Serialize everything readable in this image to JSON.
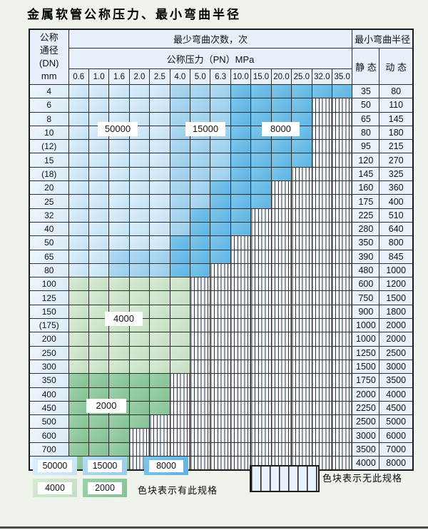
{
  "page": {
    "title": "金属软管公称压力、最小弯曲半径"
  },
  "table": {
    "header": {
      "dn_label_lines": [
        "公称",
        "通径",
        "(DN)",
        "mm"
      ],
      "cycles_label": "最少弯曲次数，次",
      "pressure_label": "公称压力（PN）MPa",
      "radius_label": "最小弯曲半径",
      "static_label": "静 态",
      "dynamic_label": "动 态",
      "pressure_columns": [
        "0.6",
        "1.0",
        "1.6",
        "2.0",
        "2.5",
        "4.0",
        "5.0",
        "6.3",
        "10.0",
        "15.0",
        "20.0",
        "25.0",
        "32.0",
        "35.0"
      ]
    },
    "cell_code_meaning": {
      "A": "50000",
      "B": "15000",
      "C": "8000",
      "D": "4000",
      "E": "2000",
      "X": "无此规格"
    },
    "rows": [
      {
        "dn": "4",
        "cells": "AAAAABBBCCCCCC",
        "static": "35",
        "dynamic": "80"
      },
      {
        "dn": "6",
        "cells": "AAAAABBBCCCCXX",
        "static": "50",
        "dynamic": "110"
      },
      {
        "dn": "8",
        "cells": "AAAAABBBCCCCXX",
        "static": "65",
        "dynamic": "145"
      },
      {
        "dn": "10",
        "cells": "AAAAABBBCCCCXX",
        "static": "80",
        "dynamic": "180"
      },
      {
        "dn": "(12)",
        "cells": "AAAAABBBCCCCXX",
        "static": "95",
        "dynamic": "215"
      },
      {
        "dn": "15",
        "cells": "AAAAABBBCCCCXX",
        "static": "120",
        "dynamic": "270"
      },
      {
        "dn": "(18)",
        "cells": "AAAAABBBCCCXXX",
        "static": "145",
        "dynamic": "325"
      },
      {
        "dn": "20",
        "cells": "AAAAABBCCCXXXX",
        "static": "160",
        "dynamic": "360"
      },
      {
        "dn": "25",
        "cells": "AAAAABBCCCXXXX",
        "static": "175",
        "dynamic": "400"
      },
      {
        "dn": "32",
        "cells": "AAAAABCCCXXXXX",
        "static": "225",
        "dynamic": "510"
      },
      {
        "dn": "40",
        "cells": "AAAAABCCCXXXXX",
        "static": "280",
        "dynamic": "640"
      },
      {
        "dn": "50",
        "cells": "AAAAACCCXXXXXX",
        "static": "350",
        "dynamic": "800"
      },
      {
        "dn": "65",
        "cells": "AABBBCCCXXXXXX",
        "static": "390",
        "dynamic": "845"
      },
      {
        "dn": "80",
        "cells": "AABBBCCXXXXXXX",
        "static": "480",
        "dynamic": "1000"
      },
      {
        "dn": "100",
        "cells": "DDDDDDXXXXXXXX",
        "static": "600",
        "dynamic": "1200"
      },
      {
        "dn": "125",
        "cells": "DDDDDDXXXXXXXX",
        "static": "750",
        "dynamic": "1500"
      },
      {
        "dn": "150",
        "cells": "DDDDDDXXXXXXXX",
        "static": "900",
        "dynamic": "1800"
      },
      {
        "dn": "(175)",
        "cells": "DDDDDDXXXXXXXX",
        "static": "1000",
        "dynamic": "2000"
      },
      {
        "dn": "200",
        "cells": "DDDDDDXXXXXXXX",
        "static": "1000",
        "dynamic": "2000"
      },
      {
        "dn": "250",
        "cells": "DDDDDDXXXXXXXX",
        "static": "1250",
        "dynamic": "2500"
      },
      {
        "dn": "300",
        "cells": "DDDDDDXXXXXXXX",
        "static": "1500",
        "dynamic": "3000"
      },
      {
        "dn": "350",
        "cells": "EEEEEXXXXXXXXX",
        "static": "1750",
        "dynamic": "3500"
      },
      {
        "dn": "400",
        "cells": "EEEEEXXXXXXXXX",
        "static": "2000",
        "dynamic": "4000"
      },
      {
        "dn": "450",
        "cells": "EEEEEXXXXXXXXX",
        "static": "2250",
        "dynamic": "4500"
      },
      {
        "dn": "500",
        "cells": "EEEEXXXXXXXXXX",
        "static": "2500",
        "dynamic": "5000"
      },
      {
        "dn": "600",
        "cells": "EEEXXXXXXXXXXX",
        "static": "3000",
        "dynamic": "6000"
      },
      {
        "dn": "700",
        "cells": "EEEXXXXXXXXXXX",
        "static": "3500",
        "dynamic": "7000"
      },
      {
        "dn": "800",
        "cells": "EEEXXXXXXXXXXX",
        "static": "4000",
        "dynamic": "8000"
      }
    ],
    "overlay_labels": [
      {
        "text": "50000"
      },
      {
        "text": "15000"
      },
      {
        "text": "8000"
      },
      {
        "text": "4000"
      },
      {
        "text": "2000"
      }
    ]
  },
  "legend": {
    "items": [
      {
        "value": "50000",
        "color": "#cde4f6"
      },
      {
        "value": "15000",
        "color": "#a3d3ee"
      },
      {
        "value": "8000",
        "color": "#6cbce6"
      },
      {
        "value": "4000",
        "color": "#cde4cb"
      },
      {
        "value": "2000",
        "color": "#8cc69a"
      }
    ],
    "present_note": "色块表示有此规格",
    "absent_note": "色块表示无此规格"
  },
  "colors": {
    "page_background": "#eef3ec",
    "grid_line": "#2e2e2e",
    "header_fill": "#e7f0f8",
    "hatch_fill": "#e3eef8"
  }
}
